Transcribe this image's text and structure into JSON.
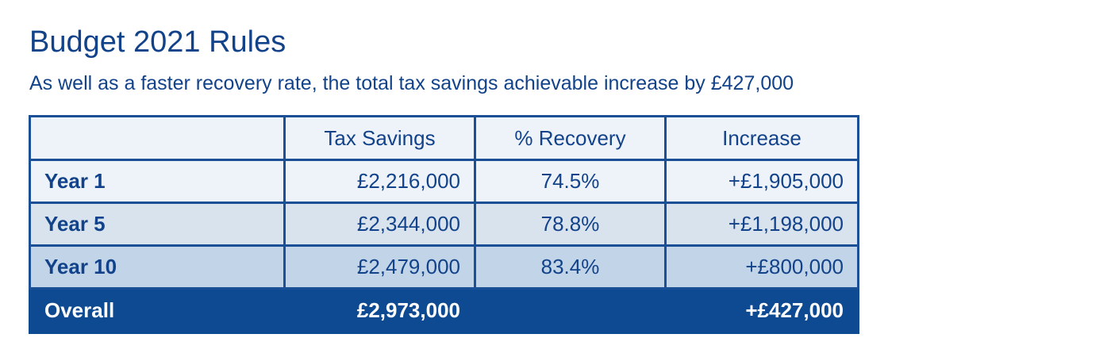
{
  "title": "Budget 2021 Rules",
  "subtitle": "As well as a faster recovery rate, the total tax savings achievable increase by £427,000",
  "table": {
    "headers": [
      "",
      "Tax Savings",
      "% Recovery",
      "Increase"
    ],
    "rows": [
      {
        "label": "Year 1",
        "tax_savings": "£2,216,000",
        "recovery": "74.5%",
        "increase": "+£1,905,000"
      },
      {
        "label": "Year 5",
        "tax_savings": "£2,344,000",
        "recovery": "78.8%",
        "increase": "+£1,198,000"
      },
      {
        "label": "Year 10",
        "tax_savings": "£2,479,000",
        "recovery": "83.4%",
        "increase": "+£800,000"
      }
    ],
    "total": {
      "label": "Overall",
      "tax_savings": "£2,973,000",
      "recovery": "",
      "increase": "+£427,000"
    }
  },
  "colors": {
    "brand_blue": "#12438a",
    "total_row": "#0e4a92",
    "row_1": "#eef2f9",
    "row_2": "#d9e3ee",
    "row_3": "#c2d4e8"
  }
}
